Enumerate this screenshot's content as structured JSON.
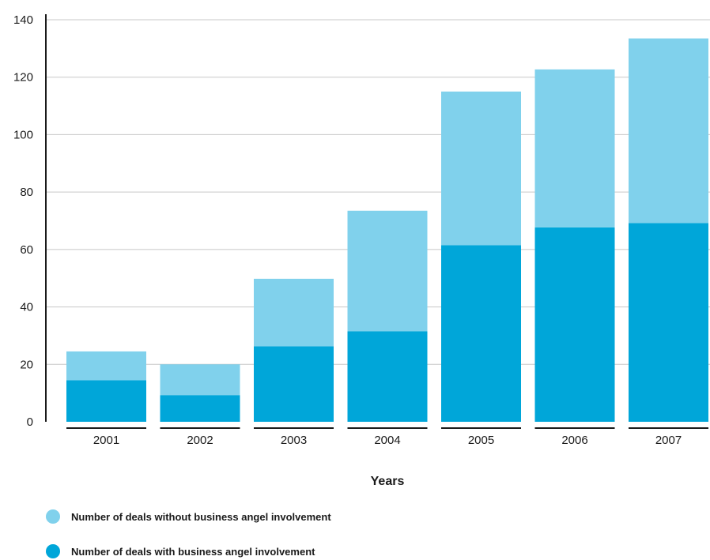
{
  "chart_data": {
    "type": "bar",
    "stacked": true,
    "categories": [
      "2001",
      "2002",
      "2003",
      "2004",
      "2005",
      "2006",
      "2007"
    ],
    "series": [
      {
        "name": "Number of deals with business angel involvement",
        "color": "#00a6d9",
        "values": [
          14.5,
          9.3,
          26.3,
          31.5,
          61.5,
          67.7,
          69.2
        ]
      },
      {
        "name": "Number of deals without business angel involvement",
        "color": "#80d1ec",
        "values": [
          10.0,
          10.7,
          23.5,
          42.0,
          53.5,
          55.0,
          64.3
        ]
      }
    ],
    "title": "",
    "xlabel": "Years",
    "ylabel": "",
    "ylim": [
      0,
      140
    ],
    "yticks": [
      "0",
      "20",
      "40",
      "60",
      "80",
      "100",
      "120",
      "140"
    ],
    "grid": true,
    "legend_position": "bottom-left"
  },
  "legend": {
    "items": [
      {
        "label": "Number of deals without business angel involvement",
        "color": "#80d1ec"
      },
      {
        "label": "Number of deals with business angel involvement",
        "color": "#00a6d9"
      }
    ]
  }
}
